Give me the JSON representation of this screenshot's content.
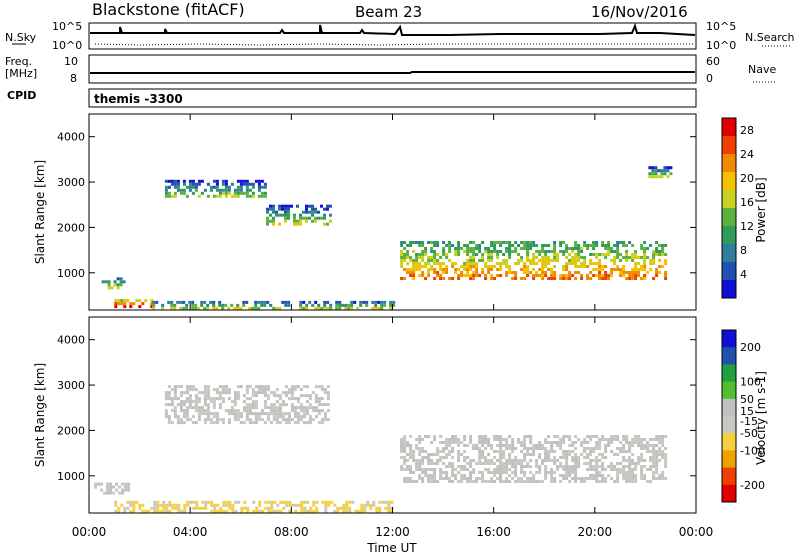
{
  "header": {
    "radar": "Blackstone (fitACF)",
    "beam": "Beam 23",
    "date": "16/Nov/2016"
  },
  "noise_panel": {
    "left_label": "N.Sky",
    "right_label": "N.Search",
    "tick_top": "10^5",
    "tick_bottom": "10^0"
  },
  "freq_panel": {
    "left_label_line1": "Freq.",
    "left_label_line2": "[MHz]",
    "right_label": "Nave",
    "left_ticks": [
      "10",
      "8"
    ],
    "right_ticks": [
      "60",
      "0"
    ]
  },
  "cpid_panel": {
    "label": "CPID",
    "value": "themis -3300"
  },
  "x_axis": {
    "label": "Time UT",
    "ticks": [
      "00:00",
      "04:00",
      "08:00",
      "12:00",
      "16:00",
      "20:00",
      "00:00"
    ]
  },
  "colors": {
    "power_scale": [
      "#1010d8",
      "#2050b0",
      "#2e7d9a",
      "#2f9a5a",
      "#5cb040",
      "#c8d020",
      "#f5c000",
      "#f08a00",
      "#f04000",
      "#e00000"
    ],
    "velocity_scale": [
      "#e00000",
      "#f04000",
      "#f0a000",
      "#f5d040",
      "#c8c8c0",
      "#c0c0c0",
      "#50c030",
      "#20a040",
      "#2050b0",
      "#1010d8"
    ]
  },
  "chart_data": [
    {
      "type": "heatmap",
      "title": "Power",
      "xlabel": "",
      "ylabel": "Slant Range [km]",
      "y_ticks": [
        "1000",
        "2000",
        "3000",
        "4000"
      ],
      "x_range_hours": [
        0,
        24
      ],
      "y_range_km": [
        180,
        4500
      ],
      "colorbar": {
        "label": "Power [dB]",
        "ticks": [
          "4",
          "8",
          "12",
          "16",
          "20",
          "24",
          "28"
        ],
        "range": [
          0,
          30
        ]
      },
      "bands": [
        {
          "t": [
            0.5,
            1.4
          ],
          "range": [
            700,
            900
          ],
          "value": 8
        },
        {
          "t": [
            1.0,
            2.5
          ],
          "range": [
            250,
            420
          ],
          "value": 22
        },
        {
          "t": [
            2.5,
            12.0
          ],
          "range": [
            200,
            380
          ],
          "value": 10
        },
        {
          "t": [
            3.0,
            7.0
          ],
          "range": [
            2700,
            3050
          ],
          "value": 6
        },
        {
          "t": [
            7.0,
            9.5
          ],
          "range": [
            2100,
            2500
          ],
          "value": 7
        },
        {
          "t": [
            12.3,
            22.8
          ],
          "range": [
            900,
            1700
          ],
          "value": 14
        },
        {
          "t": [
            22.0,
            23.0
          ],
          "range": [
            3150,
            3350
          ],
          "value": 7
        }
      ]
    },
    {
      "type": "heatmap",
      "title": "Velocity",
      "xlabel": "Time UT",
      "ylabel": "Slant Range [km]",
      "y_ticks": [
        "1000",
        "2000",
        "3000",
        "4000"
      ],
      "x_range_hours": [
        0,
        24
      ],
      "y_range_km": [
        180,
        4500
      ],
      "colorbar": {
        "label": "Velocity [m s-1]",
        "ticks": [
          "200",
          "100",
          "50",
          "15",
          "-15",
          "-50",
          "-100",
          "-200"
        ],
        "range": [
          -250,
          250
        ]
      },
      "bands": [
        {
          "t": [
            0.2,
            1.6
          ],
          "range": [
            600,
            850
          ],
          "value": 0
        },
        {
          "t": [
            1.0,
            12.0
          ],
          "range": [
            200,
            450
          ],
          "value": -60
        },
        {
          "t": [
            3.0,
            9.5
          ],
          "range": [
            2200,
            3000
          ],
          "value": 0
        },
        {
          "t": [
            12.3,
            22.8
          ],
          "range": [
            900,
            1900
          ],
          "value": 0
        }
      ]
    }
  ]
}
